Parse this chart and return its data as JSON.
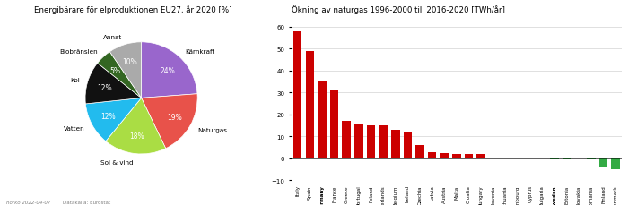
{
  "pie_title": "Energibärare för elproduktionen EU27, år 2020 [%]",
  "pie_labels": [
    "Kärnkraft",
    "Naturgas",
    "Sol & vind",
    "Vatten",
    "Kol",
    "Biobränslen",
    "Annat"
  ],
  "pie_values": [
    25,
    20,
    19,
    13,
    13,
    5,
    10
  ],
  "pie_colors": [
    "#9966CC",
    "#E8524A",
    "#AADD44",
    "#22BBEE",
    "#111111",
    "#336622",
    "#AAAAAA"
  ],
  "bar_title": "Ökning av naturgas 1996-2000 till 2016-2020 [TWh/år]",
  "bar_countries": [
    "Italy",
    "Spain",
    "Germany",
    "France",
    "Greece",
    "Portugal",
    "Poland",
    "Netherlands",
    "Belgium",
    "Ireland",
    "Czechia",
    "Latvia",
    "Austria",
    "Malta",
    "Croatia",
    "Hungary",
    "Slovenia",
    "Lithuania",
    "Luxembourg",
    "Cyprus",
    "Bulgaria",
    "Sweden",
    "Estonia",
    "Slovakia",
    "Romania",
    "Finland",
    "Denmark"
  ],
  "bar_values": [
    58,
    49,
    35,
    31,
    17,
    16,
    15,
    15,
    13,
    12,
    6,
    3,
    2.5,
    2,
    2,
    2,
    0.5,
    0.3,
    0.2,
    0.1,
    0.1,
    -0.5,
    -0.3,
    -0.2,
    -0.5,
    -4,
    -5
  ],
  "bar_colors_pos": "#CC0000",
  "bar_colors_neg": "#33AA44",
  "footer_left": "horko 2022-04-07",
  "footer_right": "Datakälla: Eurostat",
  "bold_bars": [
    "Germany",
    "Sweden"
  ]
}
